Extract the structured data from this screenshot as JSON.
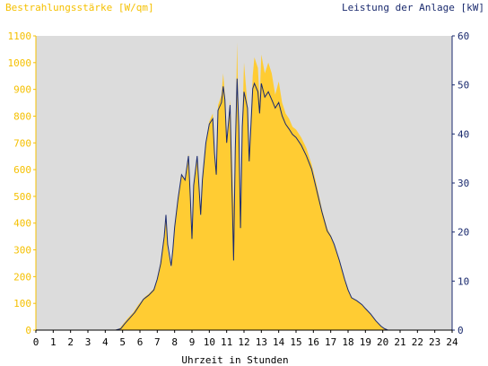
{
  "chart_data": {
    "type": "area",
    "left_axis_title": "Bestrahlungsstärke [W/qm]",
    "right_axis_title": "Leistung der Anlage [kW]",
    "xlabel": "Uhrzeit in Stunden",
    "xlim": [
      0,
      24
    ],
    "x_ticks": [
      "0",
      "1",
      "2",
      "3",
      "4",
      "5",
      "6",
      "7",
      "8",
      "9",
      "10",
      "11",
      "12",
      "13",
      "14",
      "15",
      "16",
      "17",
      "18",
      "19",
      "20",
      "21",
      "22",
      "23",
      "24"
    ],
    "ylim_left": [
      0,
      1100
    ],
    "y_ticks_left": [
      "0",
      "100",
      "200",
      "300",
      "400",
      "500",
      "600",
      "700",
      "800",
      "900",
      "1000",
      "1100"
    ],
    "ylim_right": [
      0,
      60
    ],
    "y_ticks_right": [
      "0",
      "10",
      "20",
      "30",
      "40",
      "50",
      "60"
    ],
    "grid": false,
    "series": [
      {
        "name": "Bestrahlungsstärke [W/qm]",
        "axis": "left",
        "color": "#ffcc33",
        "style": "filled area",
        "points": [
          [
            4.5,
            0
          ],
          [
            4.8,
            5
          ],
          [
            5.0,
            20
          ],
          [
            5.3,
            45
          ],
          [
            5.6,
            65
          ],
          [
            5.9,
            95
          ],
          [
            6.1,
            110
          ],
          [
            6.3,
            125
          ],
          [
            6.5,
            135
          ],
          [
            6.8,
            155
          ],
          [
            7.0,
            190
          ],
          [
            7.2,
            260
          ],
          [
            7.4,
            360
          ],
          [
            7.5,
            415
          ],
          [
            7.6,
            300
          ],
          [
            7.8,
            230
          ],
          [
            7.9,
            290
          ],
          [
            8.0,
            380
          ],
          [
            8.2,
            500
          ],
          [
            8.4,
            580
          ],
          [
            8.6,
            560
          ],
          [
            8.8,
            660
          ],
          [
            8.9,
            500
          ],
          [
            9.0,
            340
          ],
          [
            9.1,
            540
          ],
          [
            9.3,
            650
          ],
          [
            9.5,
            420
          ],
          [
            9.6,
            560
          ],
          [
            9.8,
            700
          ],
          [
            10.0,
            780
          ],
          [
            10.2,
            810
          ],
          [
            10.3,
            660
          ],
          [
            10.4,
            580
          ],
          [
            10.5,
            840
          ],
          [
            10.7,
            880
          ],
          [
            10.8,
            960
          ],
          [
            10.9,
            880
          ],
          [
            11.0,
            700
          ],
          [
            11.2,
            860
          ],
          [
            11.4,
            460
          ],
          [
            11.5,
            680
          ],
          [
            11.6,
            1075
          ],
          [
            11.7,
            760
          ],
          [
            11.8,
            380
          ],
          [
            11.9,
            770
          ],
          [
            12.0,
            1000
          ],
          [
            12.2,
            840
          ],
          [
            12.3,
            620
          ],
          [
            12.5,
            950
          ],
          [
            12.6,
            1020
          ],
          [
            12.8,
            980
          ],
          [
            12.9,
            860
          ],
          [
            13.0,
            1030
          ],
          [
            13.2,
            960
          ],
          [
            13.4,
            1000
          ],
          [
            13.6,
            960
          ],
          [
            13.8,
            880
          ],
          [
            14.0,
            930
          ],
          [
            14.2,
            850
          ],
          [
            14.4,
            810
          ],
          [
            14.6,
            790
          ],
          [
            14.8,
            760
          ],
          [
            15.0,
            750
          ],
          [
            15.3,
            720
          ],
          [
            15.6,
            680
          ],
          [
            15.9,
            620
          ],
          [
            16.2,
            540
          ],
          [
            16.5,
            450
          ],
          [
            16.8,
            380
          ],
          [
            17.0,
            355
          ],
          [
            17.2,
            320
          ],
          [
            17.5,
            260
          ],
          [
            17.8,
            190
          ],
          [
            18.0,
            150
          ],
          [
            18.2,
            120
          ],
          [
            18.5,
            110
          ],
          [
            18.8,
            95
          ],
          [
            19.0,
            80
          ],
          [
            19.3,
            60
          ],
          [
            19.6,
            35
          ],
          [
            19.9,
            15
          ],
          [
            20.1,
            5
          ],
          [
            20.3,
            0
          ]
        ]
      },
      {
        "name": "Leistung der Anlage [kW]",
        "axis": "right",
        "color": "#1a2a6e",
        "style": "line",
        "points": [
          [
            4.6,
            0
          ],
          [
            4.9,
            0.3
          ],
          [
            5.1,
            1.2
          ],
          [
            5.4,
            2.4
          ],
          [
            5.7,
            3.6
          ],
          [
            6.0,
            5.2
          ],
          [
            6.2,
            6.3
          ],
          [
            6.5,
            7.1
          ],
          [
            6.8,
            8.2
          ],
          [
            7.0,
            10.4
          ],
          [
            7.2,
            13.6
          ],
          [
            7.4,
            19.1
          ],
          [
            7.5,
            23.5
          ],
          [
            7.6,
            17.5
          ],
          [
            7.8,
            13.1
          ],
          [
            7.9,
            16.4
          ],
          [
            8.0,
            21.0
          ],
          [
            8.2,
            26.8
          ],
          [
            8.4,
            31.7
          ],
          [
            8.6,
            30.6
          ],
          [
            8.8,
            35.5
          ],
          [
            8.9,
            27.3
          ],
          [
            9.0,
            18.6
          ],
          [
            9.1,
            29.5
          ],
          [
            9.3,
            35.5
          ],
          [
            9.5,
            23.5
          ],
          [
            9.6,
            30.6
          ],
          [
            9.8,
            38.2
          ],
          [
            10.0,
            42.0
          ],
          [
            10.2,
            43.1
          ],
          [
            10.3,
            36.1
          ],
          [
            10.4,
            31.7
          ],
          [
            10.5,
            44.8
          ],
          [
            10.7,
            46.4
          ],
          [
            10.8,
            49.7
          ],
          [
            10.9,
            47.0
          ],
          [
            11.0,
            38.2
          ],
          [
            11.2,
            45.9
          ],
          [
            11.4,
            14.2
          ],
          [
            11.5,
            37.1
          ],
          [
            11.6,
            51.3
          ],
          [
            11.7,
            41.5
          ],
          [
            11.8,
            20.8
          ],
          [
            11.9,
            41.5
          ],
          [
            12.0,
            48.6
          ],
          [
            12.2,
            45.3
          ],
          [
            12.3,
            34.4
          ],
          [
            12.5,
            49.2
          ],
          [
            12.6,
            50.3
          ],
          [
            12.8,
            48.6
          ],
          [
            12.9,
            44.2
          ],
          [
            13.0,
            50.3
          ],
          [
            13.2,
            47.5
          ],
          [
            13.4,
            48.6
          ],
          [
            13.6,
            47.0
          ],
          [
            13.8,
            45.3
          ],
          [
            14.0,
            46.4
          ],
          [
            14.2,
            43.7
          ],
          [
            14.4,
            42.0
          ],
          [
            14.6,
            41.0
          ],
          [
            14.8,
            39.9
          ],
          [
            15.0,
            39.3
          ],
          [
            15.3,
            37.7
          ],
          [
            15.6,
            35.5
          ],
          [
            15.9,
            32.8
          ],
          [
            16.2,
            28.4
          ],
          [
            16.5,
            24.0
          ],
          [
            16.8,
            20.2
          ],
          [
            17.0,
            19.1
          ],
          [
            17.2,
            17.5
          ],
          [
            17.5,
            14.2
          ],
          [
            17.8,
            10.4
          ],
          [
            18.0,
            8.2
          ],
          [
            18.2,
            6.6
          ],
          [
            18.5,
            6.0
          ],
          [
            18.8,
            5.2
          ],
          [
            19.0,
            4.4
          ],
          [
            19.3,
            3.3
          ],
          [
            19.6,
            1.9
          ],
          [
            19.9,
            0.8
          ],
          [
            20.1,
            0.3
          ],
          [
            20.3,
            0
          ]
        ]
      }
    ]
  }
}
